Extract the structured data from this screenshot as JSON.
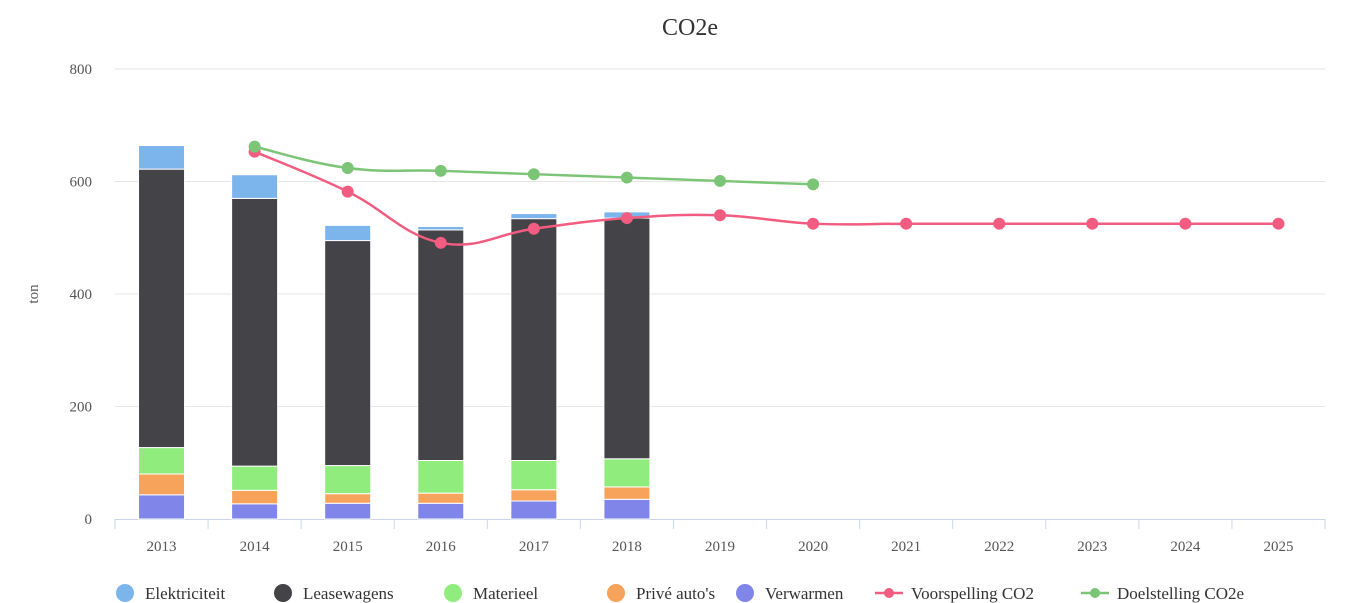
{
  "chart_data": {
    "type": "bar",
    "stacked": true,
    "title": "CO2e",
    "xlabel": "",
    "ylabel": "ton",
    "ylim": [
      0,
      800
    ],
    "yticks": [
      0,
      200,
      400,
      600,
      800
    ],
    "grid": true,
    "legend_position": "bottom",
    "categories": [
      "2013",
      "2014",
      "2015",
      "2016",
      "2017",
      "2018",
      "2019",
      "2020",
      "2021",
      "2022",
      "2023",
      "2024",
      "2025"
    ],
    "series": [
      {
        "name": "Verwarmen",
        "kind": "bar",
        "color": "#8085e9",
        "values": [
          43,
          27,
          28,
          28,
          32,
          35,
          null,
          null,
          null,
          null,
          null,
          null,
          null
        ]
      },
      {
        "name": "Privé auto's",
        "kind": "bar",
        "color": "#f7a35c",
        "values": [
          37,
          24,
          17,
          18,
          20,
          22,
          null,
          null,
          null,
          null,
          null,
          null,
          null
        ]
      },
      {
        "name": "Materieel",
        "kind": "bar",
        "color": "#90ed7d",
        "values": [
          47,
          43,
          50,
          58,
          52,
          50,
          null,
          null,
          null,
          null,
          null,
          null,
          null
        ]
      },
      {
        "name": "Leasewagens",
        "kind": "bar",
        "color": "#434348",
        "values": [
          495,
          476,
          400,
          410,
          430,
          428,
          null,
          null,
          null,
          null,
          null,
          null,
          null
        ]
      },
      {
        "name": "Elektriciteit",
        "kind": "bar",
        "color": "#7cb5ec",
        "values": [
          42,
          42,
          27,
          6,
          9,
          11,
          null,
          null,
          null,
          null,
          null,
          null,
          null
        ]
      },
      {
        "name": "Voorspelling CO2",
        "kind": "line",
        "color": "#f15c80",
        "values": [
          null,
          653,
          582,
          491,
          516,
          535,
          540,
          525,
          525,
          525,
          525,
          525,
          525
        ]
      },
      {
        "name": "Doelstelling CO2e",
        "kind": "line",
        "color": "#7cc576",
        "values": [
          null,
          662,
          624,
          619,
          613,
          607,
          601,
          595,
          null,
          null,
          null,
          null,
          null
        ]
      }
    ],
    "legend_order": [
      "Elektriciteit",
      "Leasewagens",
      "Materieel",
      "Privé auto's",
      "Verwarmen",
      "Voorspelling CO2",
      "Doelstelling CO2e"
    ]
  }
}
